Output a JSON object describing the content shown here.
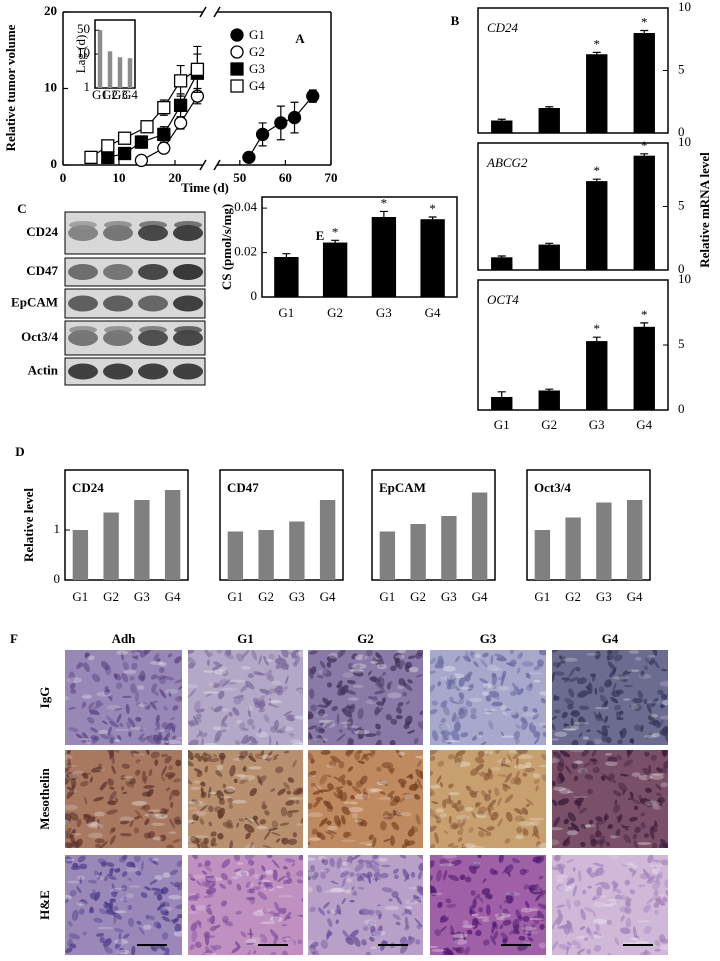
{
  "panel_letters": [
    "A",
    "B",
    "C",
    "D",
    "E",
    "F"
  ],
  "chart_data": [
    {
      "type": "line",
      "ylabel": "Relative tumor volume",
      "xlabel": "Time (d)",
      "xlim": [
        0,
        70
      ],
      "xbreak": [
        25,
        45
      ],
      "ylim": [
        0,
        20
      ],
      "xticks": [
        0,
        10,
        20,
        50,
        60,
        70
      ],
      "yticks": [
        0,
        10,
        20
      ],
      "series": [
        {
          "name": "G1",
          "color": "#000000",
          "marker": "circle",
          "filled": true,
          "x": [
            52,
            55,
            59,
            62,
            66
          ],
          "values": [
            1,
            4,
            5.5,
            6.2,
            9
          ],
          "errors": [
            0.3,
            1.5,
            2.2,
            2,
            0.8
          ]
        },
        {
          "name": "G2",
          "color": "#000000",
          "marker": "circle",
          "filled": false,
          "x": [
            14,
            18,
            21,
            24
          ],
          "values": [
            0.6,
            2.2,
            5.5,
            9
          ],
          "errors": [
            null,
            0.5,
            0.8,
            1
          ]
        },
        {
          "name": "G3",
          "color": "#000000",
          "marker": "square",
          "filled": true,
          "x": [
            8,
            11,
            14,
            18,
            21,
            24
          ],
          "values": [
            1,
            1.5,
            3,
            4,
            7.8,
            12
          ],
          "errors": [
            null,
            null,
            0.8,
            1,
            1.5,
            2.5
          ]
        },
        {
          "name": "G4",
          "color": "#000000",
          "marker": "square",
          "filled": false,
          "x": [
            5,
            8,
            11,
            15,
            18,
            21,
            24
          ],
          "values": [
            1,
            2.5,
            3.5,
            5,
            7.5,
            11,
            12.5
          ],
          "errors": [
            null,
            null,
            null,
            null,
            1,
            2,
            3
          ]
        }
      ]
    },
    {
      "type": "bar",
      "ylabel": "Lag (d)",
      "log_y": true,
      "ylim": [
        1,
        100
      ],
      "yticks": [
        1,
        10,
        50
      ],
      "categories": [
        "G1",
        "G2",
        "G3",
        "G4"
      ],
      "values": [
        50,
        12,
        8,
        7.5
      ],
      "color": "#8c8c8c"
    },
    {
      "type": "bar",
      "title": "CD24",
      "ylim": [
        0,
        10
      ],
      "yticks": [
        0,
        5,
        10
      ],
      "color": "#000000",
      "values": [
        1,
        2,
        6.3,
        8
      ],
      "errors": [
        0.1,
        0.1,
        0.15,
        0.2
      ],
      "significance": [
        null,
        null,
        "*",
        "*"
      ]
    },
    {
      "type": "bar",
      "title": "ABCG2",
      "ylabel": "Relative mRNA level",
      "ylim": [
        0,
        10
      ],
      "yticks": [
        0,
        5,
        10
      ],
      "color": "#000000",
      "values": [
        1,
        2,
        7,
        9
      ],
      "errors": [
        0.1,
        0.1,
        0.15,
        0.15
      ],
      "significance": [
        null,
        null,
        "*",
        "*"
      ]
    },
    {
      "type": "bar",
      "title": "OCT4",
      "ylim": [
        0,
        10
      ],
      "yticks": [
        0,
        5,
        10
      ],
      "color": "#000000",
      "categories": [
        "G1",
        "G2",
        "G3",
        "G4"
      ],
      "values": [
        1,
        1.5,
        5.3,
        6.4
      ],
      "errors": [
        0.4,
        0.1,
        0.3,
        0.3
      ],
      "significance": [
        null,
        null,
        "*",
        "*"
      ]
    },
    {
      "type": "bar",
      "ylabel": "CS (pmol/s/mg)",
      "ylim": [
        0,
        0.045
      ],
      "yticks": [
        0,
        0.02,
        0.04
      ],
      "color": "#000000",
      "categories": [
        "G1",
        "G2",
        "G3",
        "G4"
      ],
      "values": [
        0.018,
        0.0245,
        0.036,
        0.035
      ],
      "errors": [
        0.0015,
        0.001,
        0.0025,
        0.001
      ],
      "significance": [
        null,
        "*",
        "*",
        "*"
      ]
    },
    {
      "type": "bar",
      "title": "CD24",
      "ylabel": "Relative level",
      "ylim": [
        0,
        2.2
      ],
      "yticks": [
        0,
        1
      ],
      "color": "#808080",
      "categories": [
        "G1",
        "G2",
        "G3",
        "G4"
      ],
      "values": [
        1,
        1.35,
        1.6,
        1.8
      ]
    },
    {
      "type": "bar",
      "title": "CD47",
      "ylim": [
        0,
        2.2
      ],
      "color": "#808080",
      "categories": [
        "G1",
        "G2",
        "G3",
        "G4"
      ],
      "values": [
        0.97,
        1,
        1.17,
        1.6
      ]
    },
    {
      "type": "bar",
      "title": "EpCAM",
      "ylim": [
        0,
        2.2
      ],
      "color": "#808080",
      "categories": [
        "G1",
        "G2",
        "G3",
        "G4"
      ],
      "values": [
        0.97,
        1.12,
        1.28,
        1.75
      ]
    },
    {
      "type": "bar",
      "title": "Oct3/4",
      "ylim": [
        0,
        2.2
      ],
      "color": "#808080",
      "categories": [
        "G1",
        "G2",
        "G3",
        "G4"
      ],
      "values": [
        1,
        1.25,
        1.55,
        1.6
      ]
    }
  ],
  "blot": {
    "rows": [
      "CD24",
      "CD47",
      "EpCAM",
      "Oct3/4",
      "Actin"
    ]
  },
  "histology": {
    "columns": [
      "Adh",
      "G1",
      "G2",
      "G3",
      "G4"
    ],
    "rows": [
      "IgG",
      "Mesothelin",
      "H&E"
    ]
  }
}
